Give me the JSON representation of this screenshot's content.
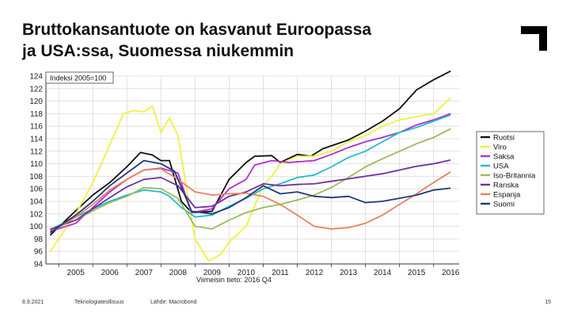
{
  "slide": {
    "title_line1": "Bruttokansantuote on kasvanut Euroopassa",
    "title_line2": "ja USA:ssa, Suomessa niukemmin",
    "footer_date": "8.9.2021",
    "footer_org": "Teknologiateollisuus",
    "footer_source": "Lähde: Macrobond",
    "page_number": "15"
  },
  "chart_data": {
    "type": "line",
    "index_label": "Indeksi 2005=100",
    "note": "Viimeisin tieto: 2016 Q4",
    "x_ticks": [
      "2005",
      "2006",
      "2007",
      "2008",
      "2009",
      "2010",
      "2011",
      "2012",
      "2013",
      "2014",
      "2015",
      "2016"
    ],
    "x_start": 2004.625,
    "x_end": 2016.75,
    "ylim": [
      94,
      124
    ],
    "y_ticks": [
      94,
      96,
      98,
      100,
      102,
      104,
      106,
      108,
      110,
      112,
      114,
      116,
      118,
      120,
      122,
      124
    ],
    "grid": true,
    "legend_position": "right",
    "series": [
      {
        "name": "Ruotsi",
        "color": "#111111",
        "points": [
          [
            2004.75,
            98.6
          ],
          [
            2005.5,
            102.5
          ],
          [
            2006,
            105.0
          ],
          [
            2006.5,
            107.0
          ],
          [
            2007,
            109.5
          ],
          [
            2007.4,
            111.8
          ],
          [
            2007.75,
            111.4
          ],
          [
            2008,
            110.5
          ],
          [
            2008.25,
            110.5
          ],
          [
            2008.6,
            104.0
          ],
          [
            2008.9,
            102.2
          ],
          [
            2009.5,
            102.4
          ],
          [
            2010,
            107.5
          ],
          [
            2010.5,
            110.2
          ],
          [
            2010.75,
            111.2
          ],
          [
            2011.25,
            111.3
          ],
          [
            2011.5,
            110.2
          ],
          [
            2012,
            111.5
          ],
          [
            2012.4,
            111.2
          ],
          [
            2012.75,
            112.4
          ],
          [
            2013.5,
            113.8
          ],
          [
            2014,
            115.2
          ],
          [
            2014.5,
            116.8
          ],
          [
            2015,
            118.8
          ],
          [
            2015.5,
            121.8
          ],
          [
            2016,
            123.4
          ],
          [
            2016.5,
            124.8
          ]
        ]
      },
      {
        "name": "Viro",
        "color": "#f3ef3f",
        "points": [
          [
            2004.75,
            96.0
          ],
          [
            2005.5,
            102.0
          ],
          [
            2006,
            107.0
          ],
          [
            2006.5,
            113.0
          ],
          [
            2006.9,
            118.0
          ],
          [
            2007.2,
            118.5
          ],
          [
            2007.5,
            118.3
          ],
          [
            2007.75,
            119.2
          ],
          [
            2008,
            115.0
          ],
          [
            2008.25,
            117.3
          ],
          [
            2008.5,
            114.5
          ],
          [
            2008.75,
            106.0
          ],
          [
            2009,
            98.0
          ],
          [
            2009.4,
            94.5
          ],
          [
            2009.75,
            95.5
          ],
          [
            2010,
            97.5
          ],
          [
            2010.5,
            100.0
          ],
          [
            2011,
            106.5
          ],
          [
            2011.25,
            108.0
          ],
          [
            2011.5,
            110.0
          ],
          [
            2012,
            111.2
          ],
          [
            2012.5,
            111.2
          ],
          [
            2013,
            112.0
          ],
          [
            2013.5,
            113.5
          ],
          [
            2014,
            114.5
          ],
          [
            2014.5,
            116.0
          ],
          [
            2015,
            117.0
          ],
          [
            2015.5,
            117.5
          ],
          [
            2016,
            118.0
          ],
          [
            2016.5,
            120.5
          ]
        ]
      },
      {
        "name": "Saksa",
        "color": "#b02fcf",
        "points": [
          [
            2004.75,
            99.2
          ],
          [
            2005.5,
            100.5
          ],
          [
            2006,
            103.0
          ],
          [
            2006.5,
            105.5
          ],
          [
            2007,
            107.5
          ],
          [
            2007.5,
            109.0
          ],
          [
            2008,
            109.3
          ],
          [
            2008.5,
            108.5
          ],
          [
            2008.9,
            102.2
          ],
          [
            2009.5,
            102.8
          ],
          [
            2010,
            106.0
          ],
          [
            2010.5,
            107.5
          ],
          [
            2010.75,
            109.8
          ],
          [
            2011.25,
            110.5
          ],
          [
            2011.75,
            110.2
          ],
          [
            2012,
            110.3
          ],
          [
            2012.5,
            110.5
          ],
          [
            2013,
            111.5
          ],
          [
            2013.5,
            112.6
          ],
          [
            2014,
            113.5
          ],
          [
            2014.5,
            114.2
          ],
          [
            2015,
            115.0
          ],
          [
            2015.5,
            116.2
          ],
          [
            2016,
            117.0
          ],
          [
            2016.5,
            118.0
          ]
        ]
      },
      {
        "name": "USA",
        "color": "#22bcd0",
        "points": [
          [
            2004.75,
            99.5
          ],
          [
            2005.5,
            101.5
          ],
          [
            2006,
            102.8
          ],
          [
            2006.5,
            104.0
          ],
          [
            2007,
            105.0
          ],
          [
            2007.5,
            105.8
          ],
          [
            2008,
            105.5
          ],
          [
            2008.25,
            104.8
          ],
          [
            2008.6,
            103.0
          ],
          [
            2009,
            101.5
          ],
          [
            2009.5,
            101.8
          ],
          [
            2010,
            103.2
          ],
          [
            2010.5,
            104.5
          ],
          [
            2011,
            106.0
          ],
          [
            2011.5,
            106.8
          ],
          [
            2012,
            107.8
          ],
          [
            2012.5,
            108.2
          ],
          [
            2013,
            109.5
          ],
          [
            2013.5,
            111.0
          ],
          [
            2014,
            112.0
          ],
          [
            2014.5,
            113.5
          ],
          [
            2015,
            115.0
          ],
          [
            2015.5,
            115.8
          ],
          [
            2016,
            116.8
          ],
          [
            2016.5,
            117.8
          ]
        ]
      },
      {
        "name": "Iso-Britannia",
        "color": "#9bbb59",
        "points": [
          [
            2004.75,
            99.6
          ],
          [
            2005.5,
            101.0
          ],
          [
            2006,
            102.5
          ],
          [
            2006.5,
            103.8
          ],
          [
            2007,
            104.8
          ],
          [
            2007.5,
            106.2
          ],
          [
            2008,
            106.0
          ],
          [
            2008.5,
            104.5
          ],
          [
            2009,
            100.0
          ],
          [
            2009.5,
            99.6
          ],
          [
            2010,
            101.0
          ],
          [
            2010.5,
            102.2
          ],
          [
            2011,
            103.0
          ],
          [
            2011.5,
            103.5
          ],
          [
            2012,
            104.2
          ],
          [
            2012.5,
            105.0
          ],
          [
            2013,
            106.2
          ],
          [
            2013.5,
            107.8
          ],
          [
            2014,
            109.5
          ],
          [
            2014.5,
            110.8
          ],
          [
            2015,
            112.0
          ],
          [
            2015.5,
            113.2
          ],
          [
            2016,
            114.2
          ],
          [
            2016.5,
            115.6
          ]
        ]
      },
      {
        "name": "Ranska",
        "color": "#7030a0",
        "points": [
          [
            2004.75,
            99.5
          ],
          [
            2005.5,
            101.0
          ],
          [
            2006,
            102.8
          ],
          [
            2006.5,
            104.6
          ],
          [
            2007,
            106.3
          ],
          [
            2007.5,
            107.5
          ],
          [
            2008,
            107.8
          ],
          [
            2008.5,
            106.5
          ],
          [
            2009,
            103.0
          ],
          [
            2009.5,
            103.2
          ],
          [
            2010,
            104.8
          ],
          [
            2010.5,
            105.5
          ],
          [
            2011,
            106.8
          ],
          [
            2011.5,
            106.5
          ],
          [
            2012,
            106.7
          ],
          [
            2012.5,
            106.8
          ],
          [
            2013,
            107.2
          ],
          [
            2013.5,
            107.6
          ],
          [
            2014,
            108.0
          ],
          [
            2014.5,
            108.4
          ],
          [
            2015,
            109.0
          ],
          [
            2015.5,
            109.6
          ],
          [
            2016,
            110.0
          ],
          [
            2016.5,
            110.6
          ]
        ]
      },
      {
        "name": "Espanja",
        "color": "#e9825c",
        "points": [
          [
            2004.75,
            99.0
          ],
          [
            2005.5,
            101.5
          ],
          [
            2006,
            103.5
          ],
          [
            2006.5,
            105.8
          ],
          [
            2007,
            107.5
          ],
          [
            2007.5,
            109.0
          ],
          [
            2008,
            109.2
          ],
          [
            2008.5,
            107.5
          ],
          [
            2009,
            105.5
          ],
          [
            2009.5,
            105.0
          ],
          [
            2010,
            105.2
          ],
          [
            2010.5,
            105.3
          ],
          [
            2011,
            104.8
          ],
          [
            2011.5,
            103.5
          ],
          [
            2012,
            101.8
          ],
          [
            2012.5,
            100.0
          ],
          [
            2013,
            99.6
          ],
          [
            2013.5,
            99.8
          ],
          [
            2014,
            100.5
          ],
          [
            2014.5,
            101.8
          ],
          [
            2015,
            103.5
          ],
          [
            2015.5,
            105.2
          ],
          [
            2016,
            107.0
          ],
          [
            2016.5,
            108.7
          ]
        ]
      },
      {
        "name": "Suomi",
        "color": "#1f3a7a",
        "points": [
          [
            2004.75,
            99.0
          ],
          [
            2005.5,
            101.8
          ],
          [
            2006,
            104.0
          ],
          [
            2006.5,
            106.5
          ],
          [
            2007,
            108.5
          ],
          [
            2007.5,
            110.5
          ],
          [
            2008,
            110.0
          ],
          [
            2008.4,
            108.8
          ],
          [
            2008.9,
            102.4
          ],
          [
            2009.5,
            102.0
          ],
          [
            2010,
            103.0
          ],
          [
            2010.5,
            104.6
          ],
          [
            2011,
            106.5
          ],
          [
            2011.5,
            105.2
          ],
          [
            2012,
            105.5
          ],
          [
            2012.5,
            104.8
          ],
          [
            2013,
            104.6
          ],
          [
            2013.5,
            104.8
          ],
          [
            2014,
            103.8
          ],
          [
            2014.5,
            104.0
          ],
          [
            2015,
            104.5
          ],
          [
            2015.5,
            105.0
          ],
          [
            2016,
            105.8
          ],
          [
            2016.5,
            106.1
          ]
        ]
      }
    ]
  },
  "colors": {
    "axis": "#333333",
    "grid": "#d9d9d9",
    "logo": "#000000"
  }
}
